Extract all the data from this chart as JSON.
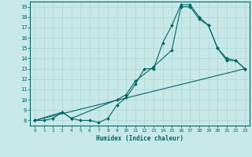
{
  "xlabel": "Humidex (Indice chaleur)",
  "bg_color": "#c8e8e8",
  "line_color": "#006666",
  "grid_color": "#b0d8d8",
  "xlim": [
    -0.5,
    23.5
  ],
  "ylim": [
    7.5,
    19.5
  ],
  "xticks": [
    0,
    1,
    2,
    3,
    4,
    5,
    6,
    7,
    8,
    9,
    10,
    11,
    12,
    13,
    14,
    15,
    16,
    17,
    18,
    19,
    20,
    21,
    22,
    23
  ],
  "yticks": [
    8,
    9,
    10,
    11,
    12,
    13,
    14,
    15,
    16,
    17,
    18,
    19
  ],
  "series": [
    {
      "x": [
        0,
        1,
        2,
        3,
        4,
        5,
        6,
        7,
        8,
        9,
        10,
        11,
        12,
        13,
        14,
        15,
        16,
        17,
        18,
        19,
        20,
        21,
        22,
        23
      ],
      "y": [
        8,
        8,
        8.2,
        8.8,
        8.2,
        8,
        8,
        7.8,
        8.2,
        9.5,
        10.2,
        11.5,
        13,
        13,
        15.5,
        17.2,
        19.2,
        19.2,
        18,
        17.2,
        15,
        13.8,
        13.8,
        13
      ]
    },
    {
      "x": [
        0,
        3,
        4,
        9,
        10,
        11,
        13,
        15,
        16,
        17,
        18,
        19,
        20,
        21,
        22,
        23
      ],
      "y": [
        8,
        8.8,
        8.2,
        10,
        10.5,
        11.8,
        13.2,
        14.8,
        19,
        19,
        17.8,
        17.2,
        15,
        14,
        13.8,
        13
      ]
    },
    {
      "x": [
        0,
        23
      ],
      "y": [
        8,
        13
      ]
    }
  ]
}
